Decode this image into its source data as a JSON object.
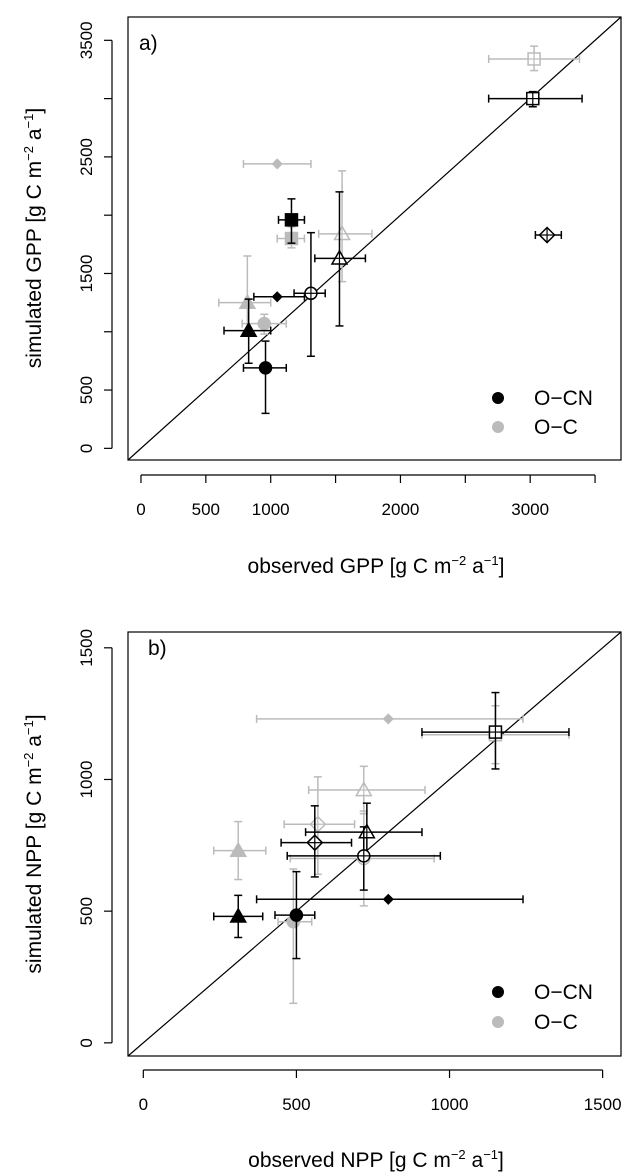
{
  "chart_data": [
    {
      "type": "scatter",
      "panel_label": "a)",
      "xlabel": {
        "main": "observed GPP [g C m",
        "exp1": "−2",
        "mid": " a",
        "exp2": "−1",
        "end": "]"
      },
      "ylabel": {
        "main": "simulated GPP [g C m",
        "exp1": "−2",
        "mid": " a",
        "exp2": "−1",
        "end": "]"
      },
      "xlim": [
        -100,
        3700
      ],
      "ylim": [
        -100,
        3700
      ],
      "x_ticks": [
        0,
        500,
        1000,
        2000,
        3000
      ],
      "x_tick_labels": [
        "0",
        "500",
        "1000",
        "2000",
        "3000"
      ],
      "x_tick_marks": [
        0,
        500,
        1000,
        1500,
        2000,
        2500,
        3000,
        3500
      ],
      "y_ticks": [
        0,
        500,
        1500,
        2500,
        3500
      ],
      "y_tick_labels": [
        "0",
        "500",
        "1500",
        "2500",
        "3500"
      ],
      "y_tick_marks": [
        0,
        500,
        1000,
        1500,
        2000,
        2500,
        3000,
        3500
      ],
      "one_to_one_line": true,
      "grid": false,
      "legend": {
        "position": "bottom-right",
        "entries": [
          {
            "label": "O−CN",
            "color": "#000000"
          },
          {
            "label": "O−C",
            "color": "#bbbbbb"
          }
        ]
      },
      "series": [
        {
          "name": "O−C",
          "color": "#bbbbbb",
          "points": [
            {
              "marker": "square-open",
              "x": 3030,
              "y": 3340,
              "xerr": [
                2680,
                3380
              ],
              "yerr": [
                3240,
                3450
              ]
            },
            {
              "marker": "diamond-filled",
              "x": 1050,
              "y": 2440,
              "xerr": [
                790,
                1310
              ],
              "yerr": null
            },
            {
              "marker": "square-filled",
              "x": 1160,
              "y": 1800,
              "xerr": [
                1050,
                1260
              ],
              "yerr": [
                1720,
                1900
              ]
            },
            {
              "marker": "triangle-open",
              "x": 1550,
              "y": 1840,
              "xerr": [
                1370,
                1780
              ],
              "yerr": [
                1430,
                2380
              ]
            },
            {
              "marker": "triangle-filled",
              "x": 820,
              "y": 1250,
              "xerr": [
                600,
                1000
              ],
              "yerr": [
                1000,
                1650
              ]
            },
            {
              "marker": "circle-filled",
              "x": 950,
              "y": 1070,
              "xerr": [
                780,
                1120
              ],
              "yerr": [
                980,
                1150
              ]
            }
          ]
        },
        {
          "name": "O−CN",
          "color": "#000000",
          "points": [
            {
              "marker": "square-open",
              "x": 3020,
              "y": 3000,
              "xerr": [
                2680,
                3400
              ],
              "yerr": [
                2930,
                3060
              ]
            },
            {
              "marker": "diamond-open",
              "x": 3130,
              "y": 1830,
              "xerr": [
                3040,
                3240
              ],
              "yerr": null
            },
            {
              "marker": "square-filled",
              "x": 1160,
              "y": 1960,
              "xerr": [
                1060,
                1260
              ],
              "yerr": [
                1760,
                2140
              ]
            },
            {
              "marker": "triangle-open",
              "x": 1530,
              "y": 1630,
              "xerr": [
                1340,
                1730
              ],
              "yerr": [
                1050,
                2200
              ]
            },
            {
              "marker": "circle-open",
              "x": 1310,
              "y": 1330,
              "xerr": [
                1180,
                1420
              ],
              "yerr": [
                790,
                1850
              ]
            },
            {
              "marker": "diamond-filled",
              "x": 1050,
              "y": 1300,
              "xerr": [
                870,
                1260
              ],
              "yerr": null
            },
            {
              "marker": "triangle-filled",
              "x": 830,
              "y": 1010,
              "xerr": [
                640,
                1000
              ],
              "yerr": [
                730,
                1280
              ]
            },
            {
              "marker": "circle-filled",
              "x": 960,
              "y": 690,
              "xerr": [
                790,
                1120
              ],
              "yerr": [
                300,
                920
              ]
            }
          ]
        }
      ]
    },
    {
      "type": "scatter",
      "panel_label": "b)",
      "xlabel": {
        "main": "observed NPP [g C m",
        "exp1": "−2",
        "mid": " a",
        "exp2": "−1",
        "end": "]"
      },
      "ylabel": {
        "main": "simulated NPP [g C m",
        "exp1": "−2",
        "mid": " a",
        "exp2": "−1",
        "end": "]"
      },
      "xlim": [
        -50,
        1560
      ],
      "ylim": [
        -50,
        1560
      ],
      "x_ticks": [
        0,
        500,
        1000,
        1500
      ],
      "x_tick_labels": [
        "0",
        "500",
        "1000",
        "1500"
      ],
      "x_tick_marks": [
        0,
        500,
        1000,
        1500
      ],
      "y_ticks": [
        0,
        500,
        1000,
        1500
      ],
      "y_tick_labels": [
        "0",
        "500",
        "1000",
        "1500"
      ],
      "y_tick_marks": [
        0,
        500,
        1000,
        1500
      ],
      "one_to_one_line": true,
      "grid": false,
      "legend": {
        "position": "bottom-right",
        "entries": [
          {
            "label": "O−CN",
            "color": "#000000"
          },
          {
            "label": "O−C",
            "color": "#bbbbbb"
          }
        ]
      },
      "series": [
        {
          "name": "O−C",
          "color": "#bbbbbb",
          "points": [
            {
              "marker": "diamond-filled",
              "x": 800,
              "y": 1230,
              "xerr": [
                370,
                1240
              ],
              "yerr": null
            },
            {
              "marker": "square-open",
              "x": 1150,
              "y": 1170,
              "xerr": [
                910,
                1390
              ],
              "yerr": [
                1060,
                1280
              ]
            },
            {
              "marker": "triangle-open",
              "x": 720,
              "y": 960,
              "xerr": [
                540,
                920
              ],
              "yerr": [
                870,
                1050
              ]
            },
            {
              "marker": "diamond-open",
              "x": 570,
              "y": 830,
              "xerr": [
                460,
                690
              ],
              "yerr": [
                640,
                1010
              ]
            },
            {
              "marker": "triangle-filled",
              "x": 310,
              "y": 730,
              "xerr": [
                230,
                400
              ],
              "yerr": [
                620,
                840
              ]
            },
            {
              "marker": "circle-open",
              "x": 720,
              "y": 700,
              "xerr": [
                480,
                950
              ],
              "yerr": [
                520,
                880
              ]
            },
            {
              "marker": "circle-filled",
              "x": 490,
              "y": 460,
              "xerr": [
                440,
                550
              ],
              "yerr": [
                150,
                660
              ]
            }
          ]
        },
        {
          "name": "O−CN",
          "color": "#000000",
          "points": [
            {
              "marker": "square-open",
              "x": 1150,
              "y": 1180,
              "xerr": [
                910,
                1390
              ],
              "yerr": [
                1040,
                1330
              ]
            },
            {
              "marker": "triangle-open",
              "x": 730,
              "y": 800,
              "xerr": [
                530,
                910
              ],
              "yerr": [
                710,
                910
              ]
            },
            {
              "marker": "diamond-open",
              "x": 560,
              "y": 760,
              "xerr": [
                450,
                680
              ],
              "yerr": [
                630,
                900
              ]
            },
            {
              "marker": "circle-open",
              "x": 720,
              "y": 710,
              "xerr": [
                470,
                970
              ],
              "yerr": [
                580,
                820
              ]
            },
            {
              "marker": "diamond-filled",
              "x": 800,
              "y": 545,
              "xerr": [
                370,
                1240
              ],
              "yerr": null
            },
            {
              "marker": "circle-filled",
              "x": 500,
              "y": 485,
              "xerr": [
                430,
                560
              ],
              "yerr": [
                320,
                650
              ]
            },
            {
              "marker": "triangle-filled",
              "x": 310,
              "y": 480,
              "xerr": [
                230,
                390
              ],
              "yerr": [
                400,
                560
              ]
            }
          ]
        }
      ]
    }
  ]
}
